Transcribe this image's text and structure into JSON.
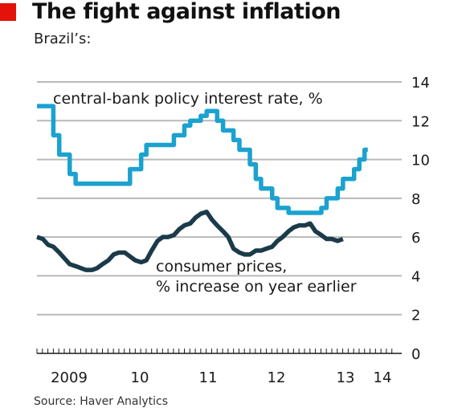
{
  "header": {
    "title": "The fight against inflation",
    "subtitle": "Brazil’s:"
  },
  "source": "Source: Haver Analytics",
  "chart_data": {
    "type": "line",
    "y_axis": {
      "range": [
        0,
        14
      ],
      "ticks": [
        0,
        2,
        4,
        6,
        8,
        10,
        12,
        14
      ],
      "position": "right"
    },
    "x_axis": {
      "range": [
        2008.58,
        2014.0
      ],
      "tick_labels": [
        {
          "label": "2009",
          "at": 2009.0
        },
        {
          "label": "10",
          "at": 2010.0
        },
        {
          "label": "11",
          "at": 2011.0
        },
        {
          "label": "12",
          "at": 2012.0
        },
        {
          "label": "13",
          "at": 2013.0
        },
        {
          "label": "14",
          "at": 2014.0
        }
      ],
      "minor_ticks": "monthly"
    },
    "grid": true,
    "colors": {
      "policy_rate": "#1ba2cf",
      "consumer_prices": "#1b3a4a"
    },
    "series": [
      {
        "name": "central-bank policy interest rate, %",
        "line_style": "step",
        "points": [
          [
            2008.58,
            12.75
          ],
          [
            2008.75,
            12.75
          ],
          [
            2008.83,
            11.25
          ],
          [
            2008.92,
            10.25
          ],
          [
            2009.08,
            9.25
          ],
          [
            2009.17,
            8.75
          ],
          [
            2009.42,
            8.75
          ],
          [
            2009.67,
            8.75
          ],
          [
            2009.92,
            8.75
          ],
          [
            2010.0,
            9.5
          ],
          [
            2010.17,
            10.25
          ],
          [
            2010.25,
            10.75
          ],
          [
            2010.58,
            10.75
          ],
          [
            2010.67,
            11.25
          ],
          [
            2010.83,
            11.75
          ],
          [
            2010.92,
            12.0
          ],
          [
            2011.08,
            12.25
          ],
          [
            2011.17,
            12.5
          ],
          [
            2011.33,
            12.0
          ],
          [
            2011.42,
            11.5
          ],
          [
            2011.58,
            11.0
          ],
          [
            2011.67,
            10.5
          ],
          [
            2011.83,
            9.75
          ],
          [
            2011.92,
            9.0
          ],
          [
            2012.0,
            8.5
          ],
          [
            2012.17,
            8.0
          ],
          [
            2012.25,
            7.5
          ],
          [
            2012.42,
            7.25
          ],
          [
            2012.83,
            7.25
          ],
          [
            2012.92,
            7.5
          ],
          [
            2013.0,
            8.0
          ],
          [
            2013.17,
            8.5
          ],
          [
            2013.25,
            9.0
          ],
          [
            2013.42,
            9.5
          ],
          [
            2013.5,
            10.0
          ],
          [
            2013.58,
            10.5
          ]
        ]
      },
      {
        "name": "consumer prices,",
        "name_line2": "% increase on year earlier",
        "line_style": "smooth",
        "points": [
          [
            2008.58,
            6.0
          ],
          [
            2008.67,
            5.9
          ],
          [
            2008.75,
            5.6
          ],
          [
            2008.83,
            5.5
          ],
          [
            2008.92,
            5.2
          ],
          [
            2009.0,
            4.9
          ],
          [
            2009.08,
            4.6
          ],
          [
            2009.17,
            4.5
          ],
          [
            2009.25,
            4.4
          ],
          [
            2009.33,
            4.3
          ],
          [
            2009.42,
            4.3
          ],
          [
            2009.5,
            4.4
          ],
          [
            2009.58,
            4.6
          ],
          [
            2009.67,
            4.8
          ],
          [
            2009.75,
            5.1
          ],
          [
            2009.83,
            5.2
          ],
          [
            2009.92,
            5.2
          ],
          [
            2010.0,
            5.0
          ],
          [
            2010.08,
            4.8
          ],
          [
            2010.17,
            4.7
          ],
          [
            2010.25,
            4.8
          ],
          [
            2010.33,
            5.3
          ],
          [
            2010.42,
            5.8
          ],
          [
            2010.5,
            6.0
          ],
          [
            2010.58,
            6.0
          ],
          [
            2010.67,
            6.1
          ],
          [
            2010.75,
            6.4
          ],
          [
            2010.83,
            6.6
          ],
          [
            2010.92,
            6.7
          ],
          [
            2011.0,
            7.0
          ],
          [
            2011.08,
            7.2
          ],
          [
            2011.17,
            7.3
          ],
          [
            2011.25,
            6.9
          ],
          [
            2011.33,
            6.6
          ],
          [
            2011.42,
            6.3
          ],
          [
            2011.5,
            6.0
          ],
          [
            2011.58,
            5.4
          ],
          [
            2011.67,
            5.2
          ],
          [
            2011.75,
            5.1
          ],
          [
            2011.83,
            5.1
          ],
          [
            2011.92,
            5.3
          ],
          [
            2012.0,
            5.3
          ],
          [
            2012.08,
            5.4
          ],
          [
            2012.17,
            5.5
          ],
          [
            2012.25,
            5.8
          ],
          [
            2012.33,
            6.0
          ],
          [
            2012.42,
            6.3
          ],
          [
            2012.5,
            6.5
          ],
          [
            2012.58,
            6.6
          ],
          [
            2012.67,
            6.6
          ],
          [
            2012.75,
            6.7
          ],
          [
            2012.83,
            6.3
          ],
          [
            2012.92,
            6.1
          ],
          [
            2013.0,
            5.9
          ],
          [
            2013.08,
            5.9
          ],
          [
            2013.17,
            5.8
          ],
          [
            2013.25,
            5.9
          ]
        ]
      }
    ]
  }
}
